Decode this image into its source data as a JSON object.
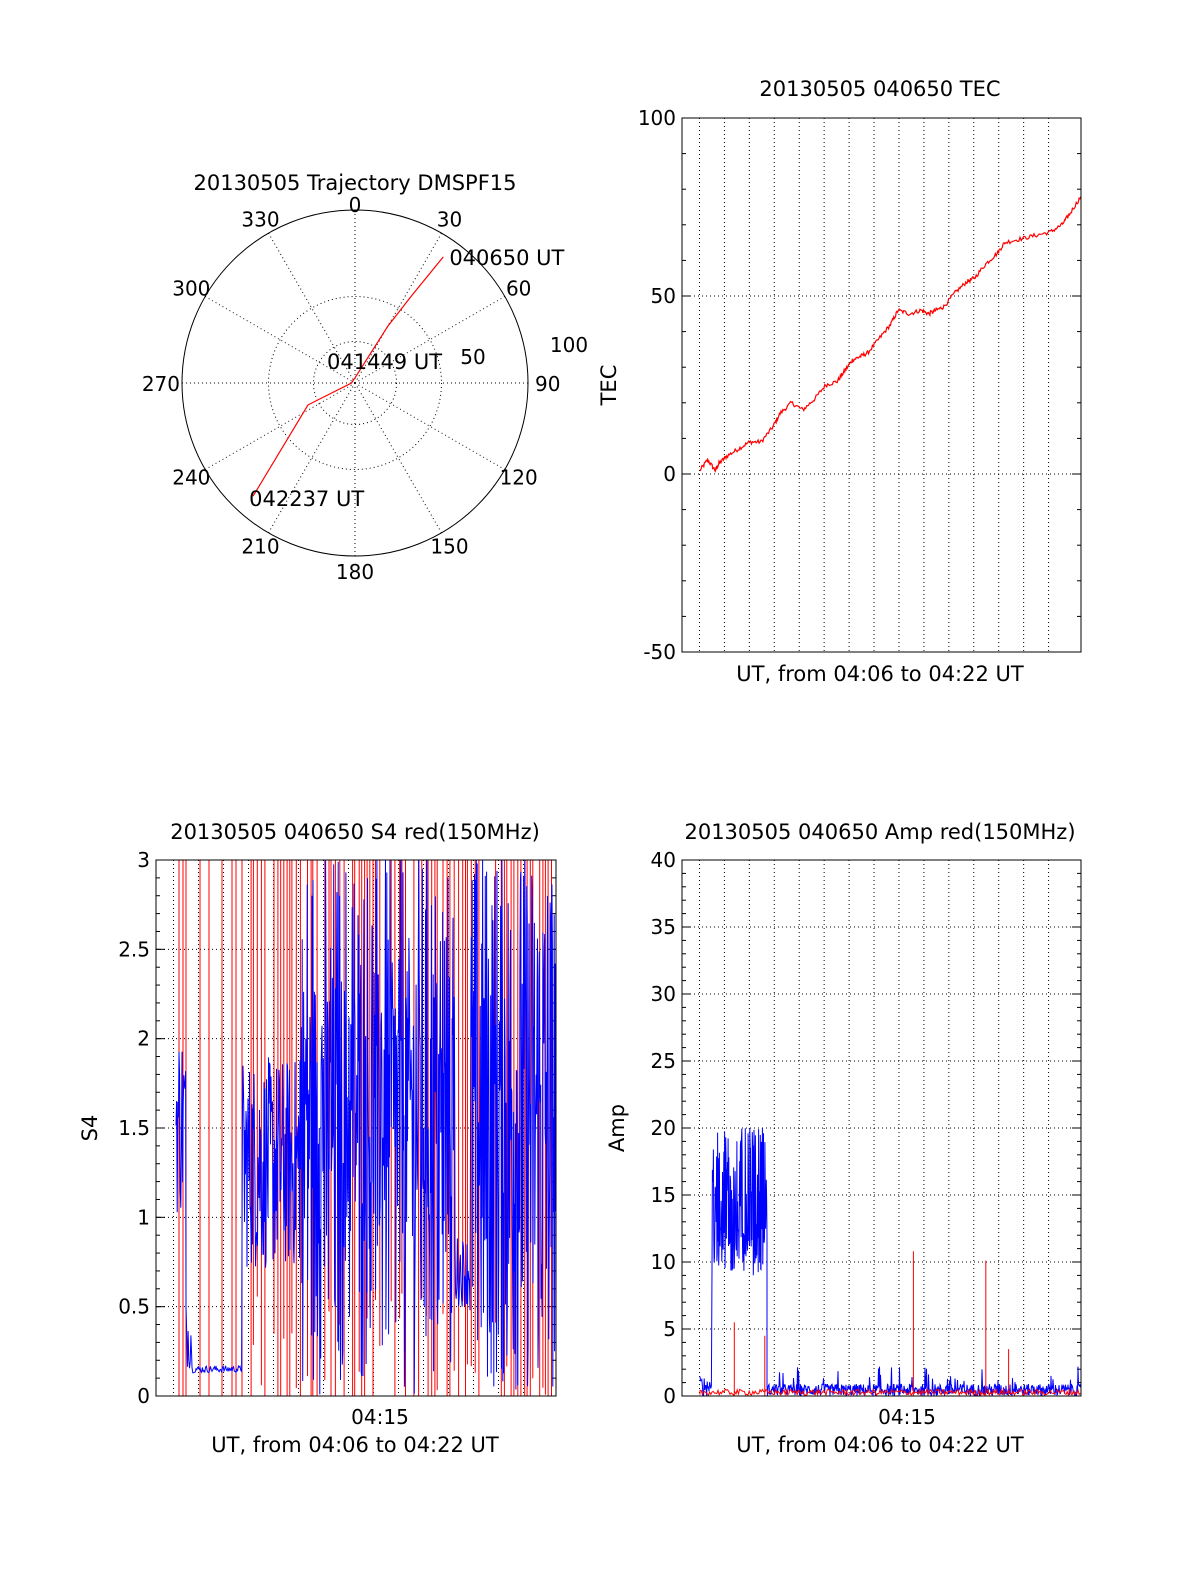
{
  "chart_data": [
    {
      "id": "trajectory",
      "type": "polar",
      "title": "20130505 Trajectory DMSPF15",
      "angle_labels": [
        "0",
        "30",
        "60",
        "90",
        "120",
        "150",
        "180",
        "210",
        "240",
        "270",
        "300",
        "330"
      ],
      "radial_labels": [
        "50",
        "100"
      ],
      "rlim": [
        0,
        100
      ],
      "track": {
        "color": "#ff0000",
        "points": [
          {
            "az": 35,
            "r": 89
          },
          {
            "az": 33,
            "r": 60
          },
          {
            "az": 30,
            "r": 38
          },
          {
            "az": 0,
            "r": 3
          },
          {
            "az": 270,
            "r": 2
          },
          {
            "az": 245,
            "r": 30
          },
          {
            "az": 222,
            "r": 88
          }
        ]
      },
      "annotations": [
        {
          "text": "040650 UT",
          "az": 35,
          "r": 89
        },
        {
          "text": "041449 UT",
          "az": 0,
          "r": 3
        },
        {
          "text": "042237 UT",
          "az": 222,
          "r": 88
        }
      ]
    },
    {
      "id": "tec",
      "type": "line",
      "title": "20130505 040650 TEC",
      "xlabel": "UT, from 04:06 to 04:22 UT",
      "ylabel": "TEC",
      "ylim": [
        -50,
        100
      ],
      "yticks": [
        "-50",
        "0",
        "50",
        "100"
      ],
      "xlim": [
        0,
        1
      ],
      "x_gridlines": 16,
      "series": [
        {
          "name": "TEC",
          "color": "#ff0000",
          "x": [
            0.0,
            0.02,
            0.04,
            0.05,
            0.07,
            0.1,
            0.13,
            0.16,
            0.19,
            0.21,
            0.24,
            0.27,
            0.3,
            0.33,
            0.36,
            0.38,
            0.4,
            0.42,
            0.44,
            0.47,
            0.5,
            0.52,
            0.55,
            0.58,
            0.6,
            0.62,
            0.64,
            0.67,
            0.7,
            0.72,
            0.75,
            0.78,
            0.8,
            0.84,
            0.88,
            0.92,
            0.95,
            0.97,
            1.0
          ],
          "y": [
            1,
            4,
            1,
            3,
            5,
            7,
            9,
            9,
            13,
            17,
            20,
            18,
            21,
            25,
            26,
            29,
            32,
            33,
            34,
            38,
            42,
            46,
            45,
            46,
            45,
            46,
            47,
            51,
            54,
            55,
            59,
            62,
            65,
            66,
            67,
            68,
            70,
            73,
            78
          ]
        }
      ]
    },
    {
      "id": "s4",
      "type": "line",
      "title": "20130505 040650 S4 red(150MHz)",
      "xlabel": "UT, from 04:06 to 04:22 UT",
      "ylabel": "S4",
      "ylim": [
        0,
        3
      ],
      "yticks": [
        "0",
        "0.5",
        "1",
        "1.5",
        "2",
        "2.5",
        "3"
      ],
      "xtick_label": "04:15",
      "xlim": [
        0,
        1
      ],
      "x_gridlines": 16,
      "series": [
        {
          "name": "S4 blue",
          "color": "#0000ff"
        },
        {
          "name": "S4 red(150MHz)",
          "color": "#ff0000"
        }
      ]
    },
    {
      "id": "amp",
      "type": "line",
      "title": "20130505 040650 Amp red(150MHz)",
      "xlabel": "UT, from 04:06 to 04:22 UT",
      "ylabel": "Amp",
      "ylim": [
        0,
        40
      ],
      "yticks": [
        "0",
        "5",
        "10",
        "15",
        "20",
        "25",
        "30",
        "35",
        "40"
      ],
      "xtick_label": "04:15",
      "xlim": [
        0,
        1
      ],
      "x_gridlines": 16,
      "series": [
        {
          "name": "Amp blue",
          "color": "#0000ff"
        },
        {
          "name": "Amp red(150MHz)",
          "color": "#ff0000",
          "spikes": [
            {
              "x": 0.09,
              "y": 5.5
            },
            {
              "x": 0.17,
              "y": 4.5
            },
            {
              "x": 0.56,
              "y": 10.8
            },
            {
              "x": 0.75,
              "y": 10.1
            },
            {
              "x": 0.81,
              "y": 3.5
            }
          ]
        }
      ]
    }
  ]
}
